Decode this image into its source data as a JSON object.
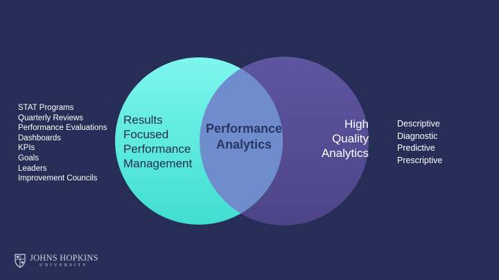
{
  "left_list": [
    "STAT Programs",
    "Quarterly Reviews",
    "Performance Evaluations",
    "Dashboards",
    "KPIs",
    "Goals",
    "Leaders",
    "Improvement Councils"
  ],
  "right_list": [
    "Descriptive",
    "Diagnostic",
    "Predictive",
    "Prescriptive"
  ],
  "venn": {
    "left_label": [
      "Results",
      "Focused",
      "Performance",
      "Management"
    ],
    "right_label": [
      "High",
      "Quality",
      "Analytics"
    ],
    "center_label": [
      "Performance",
      "Analytics"
    ]
  },
  "logo": {
    "name": "JOHNS HOPKINS",
    "sub": "UNIVERSITY",
    "icon": "johns-hopkins-shield-icon"
  },
  "colors": {
    "background": "#262e57",
    "left_circle": "#40e0d0",
    "right_circle": "#5a4f98",
    "overlap": "#6f8ccc"
  }
}
